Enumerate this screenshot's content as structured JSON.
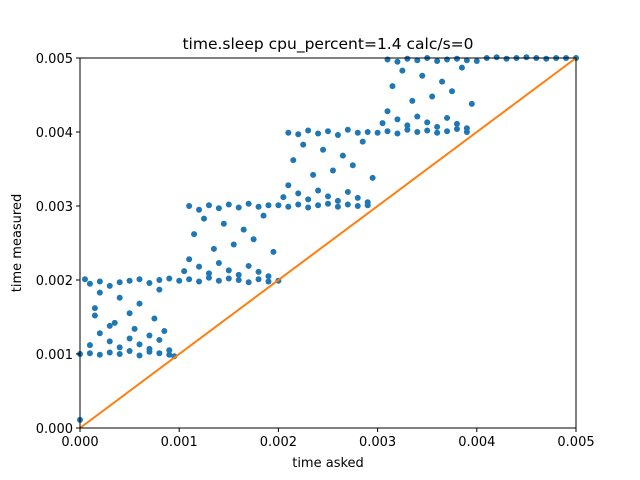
{
  "chart_data": {
    "type": "scatter",
    "title": "time.sleep cpu_percent=1.4 calc/s=0",
    "xlabel": "time asked",
    "ylabel": "time measured",
    "xlim": [
      0,
      0.005
    ],
    "ylim": [
      0,
      0.005
    ],
    "xticks": [
      "0.000",
      "0.001",
      "0.002",
      "0.003",
      "0.004",
      "0.005"
    ],
    "yticks": [
      "0.000",
      "0.001",
      "0.002",
      "0.003",
      "0.004",
      "0.005"
    ],
    "grid": false,
    "legend": "none",
    "series": [
      {
        "marker": "dot",
        "color": "#1f77b4",
        "x": [
          0.0,
          0.0,
          5e-05,
          0.0001,
          0.0001,
          0.00015,
          0.0002,
          0.0002,
          0.0003,
          0.0003,
          0.0004,
          0.0004,
          0.0005,
          0.0005,
          0.0006,
          0.0006,
          0.0007,
          0.0007,
          0.0008,
          0.0008,
          0.0009,
          0.0009,
          0.0001,
          0.0002,
          0.0003,
          0.0004,
          0.0005,
          0.0006,
          0.0007,
          0.0008,
          0.0009,
          0.00015,
          0.00035,
          0.00055,
          0.00075,
          0.00085,
          0.0002,
          0.0004,
          0.0006,
          0.0008,
          0.0003,
          0.0005,
          0.0007,
          0.00095,
          0.001,
          0.0011,
          0.0011,
          0.0012,
          0.0012,
          0.0013,
          0.0013,
          0.0014,
          0.0014,
          0.0015,
          0.0015,
          0.0016,
          0.0016,
          0.0017,
          0.0017,
          0.0018,
          0.0018,
          0.0019,
          0.0019,
          0.00105,
          0.0011,
          0.0012,
          0.0013,
          0.0014,
          0.0015,
          0.0016,
          0.0017,
          0.0018,
          0.0019,
          0.00115,
          0.00135,
          0.00155,
          0.00175,
          0.00195,
          0.00125,
          0.00145,
          0.00165,
          0.00185,
          0.002,
          0.002,
          0.0021,
          0.0021,
          0.0022,
          0.0022,
          0.0023,
          0.0023,
          0.0024,
          0.0024,
          0.0025,
          0.0025,
          0.0026,
          0.0026,
          0.0027,
          0.0027,
          0.0028,
          0.0028,
          0.0029,
          0.0029,
          0.00205,
          0.0021,
          0.0022,
          0.0023,
          0.0024,
          0.0025,
          0.0026,
          0.0027,
          0.0028,
          0.0029,
          0.00215,
          0.00235,
          0.00255,
          0.00275,
          0.00295,
          0.00225,
          0.00245,
          0.00265,
          0.00285,
          0.003,
          0.0031,
          0.0031,
          0.0032,
          0.0032,
          0.0033,
          0.0033,
          0.0034,
          0.0034,
          0.0035,
          0.0035,
          0.0036,
          0.0036,
          0.0037,
          0.0037,
          0.0038,
          0.0038,
          0.0039,
          0.0039,
          0.00305,
          0.0031,
          0.0032,
          0.0033,
          0.0034,
          0.0035,
          0.0036,
          0.0037,
          0.0038,
          0.0039,
          0.00315,
          0.00335,
          0.00355,
          0.00375,
          0.00395,
          0.00325,
          0.00345,
          0.00365,
          0.00385,
          0.004,
          0.0041,
          0.0042,
          0.0043,
          0.0044,
          0.0045,
          0.0046,
          0.0047,
          0.0048,
          0.0049,
          0.005
        ],
        "y": [
          0.00011,
          0.001,
          0.00201,
          0.00101,
          0.00195,
          0.00152,
          0.00099,
          0.00198,
          0.00102,
          0.00192,
          0.001,
          0.00197,
          0.00104,
          0.00199,
          0.00098,
          0.00201,
          0.00103,
          0.00196,
          0.00101,
          0.002,
          0.00099,
          0.00202,
          0.00112,
          0.00128,
          0.00117,
          0.00109,
          0.00121,
          0.00113,
          0.00107,
          0.00119,
          0.00105,
          0.00162,
          0.00142,
          0.00134,
          0.00148,
          0.00131,
          0.00183,
          0.00176,
          0.00168,
          0.00187,
          0.00138,
          0.00155,
          0.00125,
          0.00097,
          0.00199,
          0.00201,
          0.003,
          0.00198,
          0.00295,
          0.00203,
          0.00301,
          0.00199,
          0.00297,
          0.00202,
          0.00302,
          0.002,
          0.00298,
          0.00197,
          0.00303,
          0.00201,
          0.00299,
          0.00198,
          0.00301,
          0.00212,
          0.00228,
          0.00218,
          0.00209,
          0.00223,
          0.00213,
          0.00207,
          0.00219,
          0.00211,
          0.00205,
          0.00262,
          0.00242,
          0.00248,
          0.00255,
          0.00238,
          0.00283,
          0.00276,
          0.00268,
          0.00287,
          0.00199,
          0.00301,
          0.00299,
          0.00399,
          0.00302,
          0.00397,
          0.00298,
          0.00402,
          0.00301,
          0.00398,
          0.00303,
          0.00401,
          0.00299,
          0.00396,
          0.00302,
          0.00403,
          0.003,
          0.00399,
          0.00301,
          0.004,
          0.00312,
          0.00328,
          0.00317,
          0.00309,
          0.00321,
          0.00313,
          0.00307,
          0.00319,
          0.00311,
          0.00305,
          0.00362,
          0.00342,
          0.00348,
          0.00355,
          0.00338,
          0.00383,
          0.00376,
          0.00368,
          0.00387,
          0.00399,
          0.00401,
          0.00498,
          0.00398,
          0.00495,
          0.00403,
          0.00499,
          0.004,
          0.00497,
          0.00402,
          0.005,
          0.00399,
          0.00496,
          0.00401,
          0.00498,
          0.00404,
          0.00499,
          0.004,
          0.00497,
          0.00412,
          0.00428,
          0.00417,
          0.00409,
          0.00421,
          0.00413,
          0.00407,
          0.00419,
          0.00411,
          0.00405,
          0.00462,
          0.00442,
          0.00448,
          0.00455,
          0.00438,
          0.00483,
          0.00476,
          0.00468,
          0.00487,
          0.00496,
          0.005,
          0.00501,
          0.00499,
          0.005,
          0.00501,
          0.005,
          0.00499,
          0.005,
          0.005,
          0.005
        ]
      },
      {
        "marker": "line",
        "color": "#ff7f0e",
        "x": [
          0,
          0.005
        ],
        "y": [
          0,
          0.005
        ]
      }
    ]
  }
}
